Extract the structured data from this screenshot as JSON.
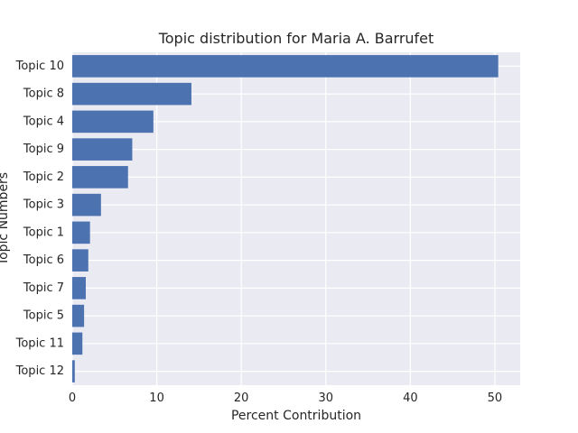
{
  "chart_data": {
    "type": "bar",
    "orientation": "horizontal",
    "title": "Topic distribution for Maria A. Barrufet",
    "xlabel": "Percent Contribution",
    "ylabel": "Topic Numbers",
    "categories": [
      "Topic 10",
      "Topic 8",
      "Topic 4",
      "Topic 9",
      "Topic 2",
      "Topic 3",
      "Topic 1",
      "Topic 6",
      "Topic 7",
      "Topic 5",
      "Topic 11",
      "Topic 12"
    ],
    "values": [
      50.4,
      14.1,
      9.6,
      7.1,
      6.6,
      3.4,
      2.1,
      1.9,
      1.6,
      1.4,
      1.2,
      0.3
    ],
    "xlim": [
      0,
      53
    ],
    "xticks": [
      0,
      10,
      20,
      30,
      40,
      50
    ],
    "grid": true,
    "colors": {
      "bar": "#4c72b0",
      "plot_background": "#eaeaf2",
      "grid": "#ffffff"
    }
  }
}
